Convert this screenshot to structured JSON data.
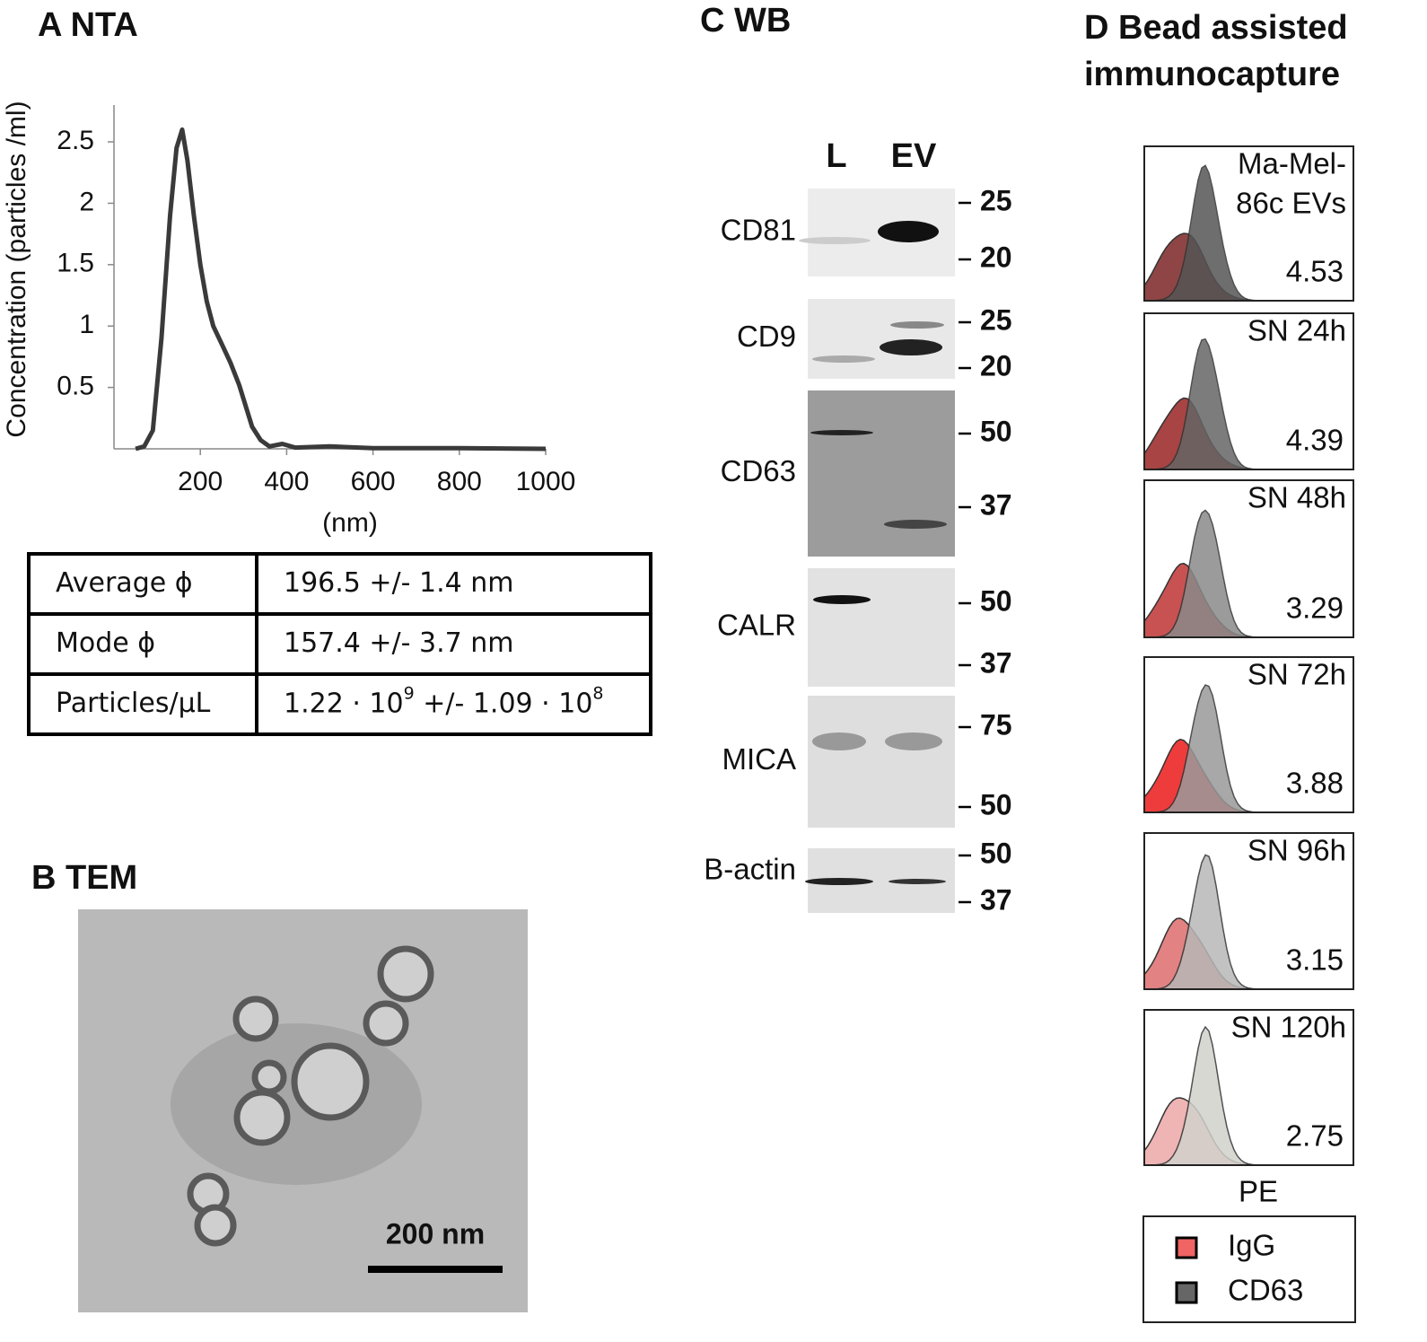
{
  "chart_data": {
    "type": "line",
    "title": "A NTA",
    "y_label": "Concentration (particles /ml)",
    "x_label": "(nm)",
    "x": [
      50,
      70,
      90,
      110,
      130,
      145,
      158,
      170,
      185,
      200,
      215,
      230,
      250,
      270,
      290,
      305,
      320,
      340,
      360,
      390,
      420,
      500,
      600,
      800,
      1000
    ],
    "values": [
      0,
      0.02,
      0.15,
      0.9,
      1.9,
      2.45,
      2.6,
      2.35,
      1.9,
      1.5,
      1.2,
      1.0,
      0.85,
      0.7,
      0.52,
      0.35,
      0.18,
      0.07,
      0.02,
      0.04,
      0.01,
      0.02,
      0.005,
      0.005,
      0
    ],
    "color": "#3a3a3a",
    "xlim": [
      0,
      1000
    ],
    "xticks": [
      200,
      400,
      600,
      800,
      1000
    ],
    "ylim": [
      0,
      2.8
    ],
    "yticks": [
      0.5,
      1,
      1.5,
      2,
      2.5
    ]
  },
  "table": {
    "rows": [
      [
        "Average ϕ",
        "196.5 +/- 1.4 nm"
      ],
      [
        "Mode ϕ",
        "157.4 +/- 3.7 nm"
      ],
      [
        "Particles/µL",
        [
          "1.22 · 10",
          "9",
          " +/- 1.09 · 10",
          "8"
        ]
      ]
    ]
  },
  "tem": {
    "title": "B  TEM",
    "scale_bar": "200 nm"
  },
  "wb": {
    "title": "C WB",
    "lanes": [
      "L",
      "EV"
    ],
    "blots": [
      {
        "label": "CD81",
        "markers": [
          25,
          20
        ]
      },
      {
        "label": "CD9",
        "markers": [
          25,
          20
        ]
      },
      {
        "label": "CD63",
        "markers": [
          50,
          37
        ]
      },
      {
        "label": "CALR",
        "markers": [
          50,
          37
        ]
      },
      {
        "label": "MICA",
        "markers": [
          75,
          50
        ]
      },
      {
        "label": "B-actin",
        "markers": [
          50,
          37
        ]
      }
    ]
  },
  "capture": {
    "title": [
      "D  Bead assisted",
      "immunocapture"
    ],
    "x_label": "PE",
    "panels": [
      {
        "label": [
          "Ma-Mel-",
          "86c EVs"
        ],
        "value": 4.53,
        "igg_color": "#8f4545",
        "cd63_color": "#555555"
      },
      {
        "label": [
          "SN 24h"
        ],
        "value": 4.39,
        "igg_color": "#a84444",
        "cd63_color": "#666666"
      },
      {
        "label": [
          "SN 48h"
        ],
        "value": 3.29,
        "igg_color": "#c85252",
        "cd63_color": "#8a8a8a"
      },
      {
        "label": [
          "SN 72h"
        ],
        "value": 3.88,
        "igg_color": "#ee3c3c",
        "cd63_color": "#9a9a9a"
      },
      {
        "label": [
          "SN 96h"
        ],
        "value": 3.15,
        "igg_color": "#e28282",
        "cd63_color": "#b8b8b8"
      },
      {
        "label": [
          "SN 120h"
        ],
        "value": 2.75,
        "igg_color": "#efb4b4",
        "cd63_color": "#d2d2cc"
      }
    ],
    "legend": [
      {
        "name": "IgG",
        "color": "#f06464"
      },
      {
        "name": "CD63",
        "color": "#666666"
      }
    ]
  }
}
